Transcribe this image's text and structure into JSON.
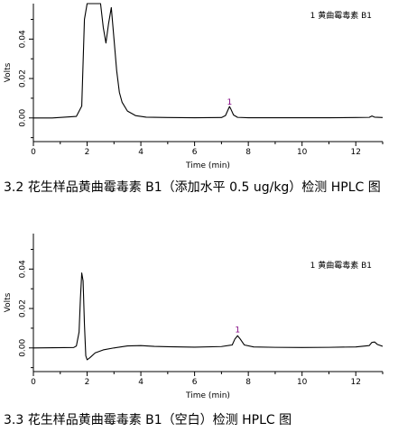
{
  "chart_data": [
    {
      "type": "line",
      "title": "",
      "xlabel": "Time (min)",
      "ylabel": "Volts",
      "xlim": [
        0,
        13
      ],
      "ylim": [
        -0.012,
        0.058
      ],
      "x_ticks": [
        0,
        2,
        4,
        6,
        8,
        10,
        12
      ],
      "y_ticks": [
        0.0,
        0.02,
        0.04
      ],
      "y_tick_labels": [
        "0.00",
        "0.02",
        "0.04"
      ],
      "legend": "1 黄曲霉毒素 B1",
      "legend_position": "top-right",
      "grid": false,
      "line_color": "#000000",
      "peak_label_color": "#800080",
      "peak_labels": [
        {
          "text": "1",
          "x": 7.3,
          "y": 0.005
        }
      ],
      "series": [
        {
          "x": [
            0,
            0.7,
            1.6,
            1.8,
            1.9,
            2.0,
            2.1,
            2.3,
            2.5,
            2.6,
            2.7,
            2.8,
            2.9,
            3.0,
            3.1,
            3.2,
            3.3,
            3.5,
            3.8,
            4.2,
            5.0,
            6.0,
            7.0,
            7.15,
            7.25,
            7.3,
            7.35,
            7.45,
            7.6,
            8.0,
            9.0,
            10.0,
            11.0,
            12.0,
            12.5,
            12.6,
            12.7,
            13.0
          ],
          "y": [
            0.0,
            0.0,
            0.0008,
            0.006,
            0.05,
            0.058,
            0.058,
            0.058,
            0.058,
            0.046,
            0.038,
            0.048,
            0.056,
            0.04,
            0.024,
            0.013,
            0.008,
            0.0035,
            0.0012,
            0.0004,
            0.0002,
            0.0001,
            0.0002,
            0.0012,
            0.0043,
            0.0058,
            0.0045,
            0.0015,
            0.0003,
            0.0001,
            0.0001,
            0.0001,
            0.0001,
            0.0002,
            0.0003,
            0.001,
            0.0004,
            0.0002
          ]
        }
      ]
    },
    {
      "type": "line",
      "title": "",
      "xlabel": "Time (min)",
      "ylabel": "Volts",
      "xlim": [
        0,
        13
      ],
      "ylim": [
        -0.012,
        0.058
      ],
      "x_ticks": [
        0,
        2,
        4,
        6,
        8,
        10,
        12
      ],
      "y_ticks": [
        0.0,
        0.02,
        0.04
      ],
      "y_tick_labels": [
        "0.00",
        "0.02",
        "0.04"
      ],
      "legend": "1 黄曲霉毒素 B1",
      "legend_position": "top-right",
      "grid": false,
      "line_color": "#000000",
      "peak_label_color": "#800080",
      "peak_labels": [
        {
          "text": "1",
          "x": 7.6,
          "y": 0.006
        }
      ],
      "series": [
        {
          "x": [
            0,
            1.5,
            1.6,
            1.7,
            1.75,
            1.8,
            1.85,
            1.9,
            1.95,
            2.0,
            2.1,
            2.3,
            2.6,
            3.0,
            3.5,
            4.0,
            4.5,
            5.0,
            6.0,
            7.0,
            7.4,
            7.5,
            7.6,
            7.7,
            7.85,
            8.2,
            9.0,
            10.0,
            11.0,
            12.0,
            12.5,
            12.6,
            12.7,
            12.8,
            13.0
          ],
          "y": [
            0.0,
            0.0002,
            0.001,
            0.008,
            0.025,
            0.038,
            0.034,
            0.012,
            -0.004,
            -0.006,
            -0.005,
            -0.0025,
            -0.001,
            0.0,
            0.001,
            0.0012,
            0.0008,
            0.0006,
            0.0004,
            0.0007,
            0.0015,
            0.0045,
            0.0062,
            0.0045,
            0.0015,
            0.0005,
            0.0003,
            0.0002,
            0.0003,
            0.0005,
            0.0012,
            0.0028,
            0.003,
            0.0018,
            0.0008
          ]
        }
      ]
    }
  ],
  "captions": {
    "chart1": "3.2 花生样品黄曲霉毒素 B1（添加水平 0.5 ug/kg）检测 HPLC 图",
    "chart2": "3.3 花生样品黄曲霉毒素 B1（空白）检测 HPLC 图"
  }
}
